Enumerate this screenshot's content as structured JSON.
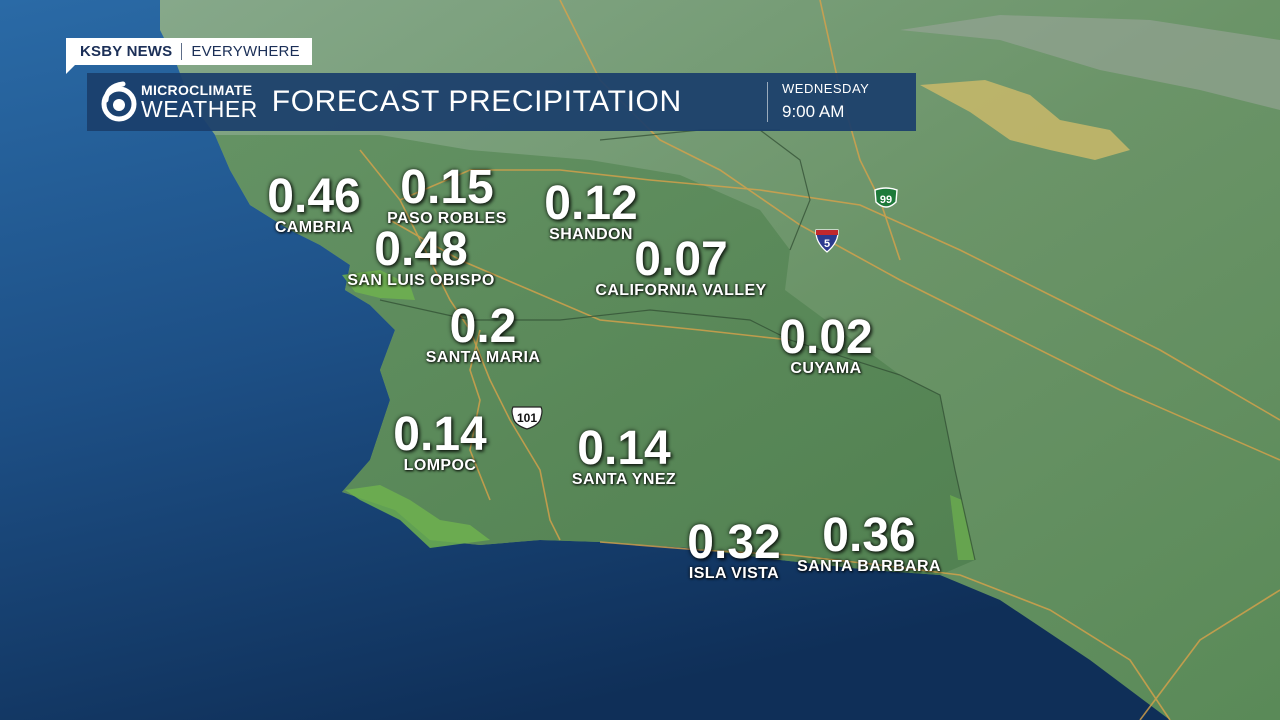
{
  "brand": {
    "station": "KSBY NEWS",
    "tagline": "EVERYWHERE"
  },
  "logo": {
    "line1": "MICROCLIMATE",
    "line2": "WEATHER",
    "channel": "6"
  },
  "header": {
    "title": "FORECAST PRECIPITATION",
    "day": "WEDNESDAY",
    "time": "9:00 AM"
  },
  "highway_shields": {
    "us101": "101",
    "i5": "5",
    "ca99": "99"
  },
  "colors": {
    "ocean": "#1d4f85",
    "land": "#5f8f5e",
    "header_bar": "#1b3e6c",
    "highlight_green": "#6fb24f",
    "roads": "#d9a24a"
  },
  "locations": [
    {
      "city": "CAMBRIA",
      "value": "0.46"
    },
    {
      "city": "PASO ROBLES",
      "value": "0.15"
    },
    {
      "city": "SHANDON",
      "value": "0.12"
    },
    {
      "city": "SAN LUIS OBISPO",
      "value": "0.48"
    },
    {
      "city": "CALIFORNIA VALLEY",
      "value": "0.07"
    },
    {
      "city": "SANTA MARIA",
      "value": "0.2"
    },
    {
      "city": "CUYAMA",
      "value": "0.02"
    },
    {
      "city": "LOMPOC",
      "value": "0.14"
    },
    {
      "city": "SANTA YNEZ",
      "value": "0.14"
    },
    {
      "city": "ISLA VISTA",
      "value": "0.32"
    },
    {
      "city": "SANTA BARBARA",
      "value": "0.36"
    }
  ]
}
